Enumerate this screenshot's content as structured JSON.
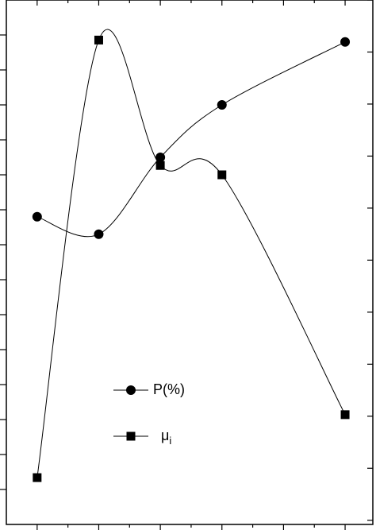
{
  "chart_data": {
    "type": "line",
    "x": [
      1,
      2,
      3,
      4,
      6
    ],
    "xlim": [
      0.5,
      6.45
    ],
    "xticks": [
      1,
      2,
      3,
      4,
      5,
      6
    ],
    "x_minor_ticks": [
      1.5,
      2.5,
      3.5,
      4.5,
      5.5
    ],
    "ylim": [
      0,
      15
    ],
    "yticks": [
      1,
      2,
      3,
      4,
      5,
      6,
      7,
      8,
      9,
      10,
      11,
      12,
      13,
      14
    ],
    "y2lim": [
      -0.08,
      10
    ],
    "y2ticks": [
      0,
      1,
      2,
      3,
      4,
      5,
      6,
      7,
      8,
      9,
      10
    ],
    "legend": "lower-left",
    "series": [
      {
        "name": "P(%)",
        "color": "#000000",
        "marker": "circle",
        "values": [
          8.8,
          8.3,
          10.5,
          12.0,
          13.8
        ]
      },
      {
        "name": "μi",
        "color": "#000000",
        "marker": "square",
        "axis": "y2",
        "values": [
          0.82,
          9.23,
          6.82,
          6.64,
          2.03
        ]
      }
    ]
  }
}
